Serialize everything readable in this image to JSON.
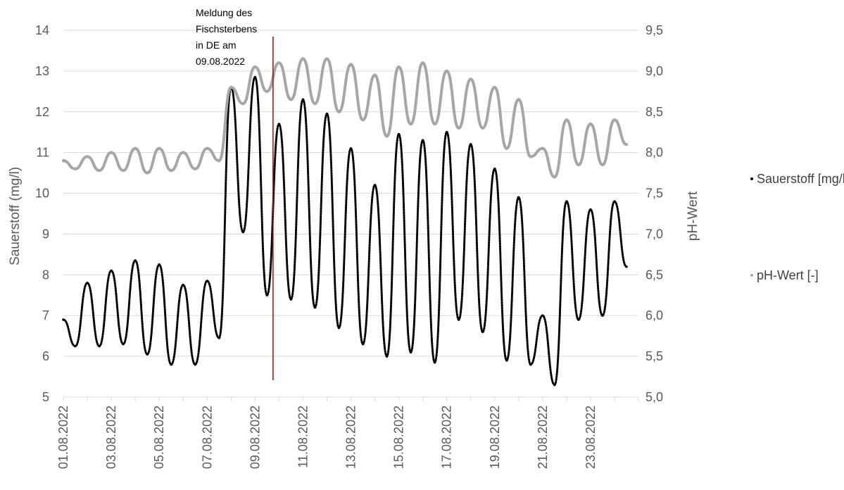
{
  "chart_data": {
    "type": "scatter",
    "title": "",
    "xlabel": "",
    "ylabel": "Sauerstoff (mg/l)",
    "y2label": "pH-Wert",
    "x_range": [
      "01.08.2022",
      "25.08.2022"
    ],
    "x_tick_labels": [
      "01.08.2022",
      "03.08.2022",
      "05.08.2022",
      "07.08.2022",
      "09.08.2022",
      "11.08.2022",
      "13.08.2022",
      "15.08.2022",
      "17.08.2022",
      "19.08.2022",
      "21.08.2022",
      "23.08.2022"
    ],
    "ylim": [
      5,
      14
    ],
    "y_ticks": [
      5,
      6,
      7,
      8,
      9,
      10,
      11,
      12,
      13,
      14
    ],
    "y2lim": [
      5.0,
      9.5
    ],
    "y2_tick_labels": [
      "5,0",
      "5,5",
      "6,0",
      "6,5",
      "7,0",
      "7,5",
      "8,0",
      "8,5",
      "9,0",
      "9,5"
    ],
    "grid": "horizontal",
    "legend_position": "right",
    "annotation": {
      "lines": [
        "Meldung des",
        "Fischsterbens",
        "in DE am",
        "09.08.2022"
      ],
      "date": "09.08.2022",
      "color": "#c00000"
    },
    "series": [
      {
        "name": "Sauerstoff [mg/l]",
        "axis": "left",
        "color": "#000000",
        "points": [
          [
            "01.08.2022",
            6.9
          ],
          [
            "01.08.2022 12:00",
            6.25
          ],
          [
            "02.08.2022",
            7.8
          ],
          [
            "02.08.2022 12:00",
            6.25
          ],
          [
            "03.08.2022",
            8.1
          ],
          [
            "03.08.2022 12:00",
            6.3
          ],
          [
            "04.08.2022",
            8.35
          ],
          [
            "04.08.2022 12:00",
            6.05
          ],
          [
            "05.08.2022",
            8.25
          ],
          [
            "05.08.2022 12:00",
            5.8
          ],
          [
            "06.08.2022",
            7.75
          ],
          [
            "06.08.2022 12:00",
            5.8
          ],
          [
            "07.08.2022",
            7.85
          ],
          [
            "07.08.2022 12:00",
            6.45
          ],
          [
            "08.08.2022",
            12.6
          ],
          [
            "08.08.2022 12:00",
            9.05
          ],
          [
            "09.08.2022",
            12.85
          ],
          [
            "09.08.2022 12:00",
            7.5
          ],
          [
            "10.08.2022",
            11.7
          ],
          [
            "10.08.2022 12:00",
            7.4
          ],
          [
            "11.08.2022",
            12.3
          ],
          [
            "11.08.2022 12:00",
            7.2
          ],
          [
            "12.08.2022",
            11.95
          ],
          [
            "12.08.2022 12:00",
            6.7
          ],
          [
            "13.08.2022",
            11.1
          ],
          [
            "13.08.2022 12:00",
            6.3
          ],
          [
            "14.08.2022",
            10.2
          ],
          [
            "14.08.2022 12:00",
            6.0
          ],
          [
            "15.08.2022",
            11.45
          ],
          [
            "15.08.2022 12:00",
            6.1
          ],
          [
            "16.08.2022",
            11.3
          ],
          [
            "16.08.2022 12:00",
            5.85
          ],
          [
            "17.08.2022",
            11.5
          ],
          [
            "17.08.2022 12:00",
            6.9
          ],
          [
            "18.08.2022",
            11.2
          ],
          [
            "18.08.2022 12:00",
            6.6
          ],
          [
            "19.08.2022",
            10.6
          ],
          [
            "19.08.2022 12:00",
            5.9
          ],
          [
            "20.08.2022",
            9.9
          ],
          [
            "20.08.2022 12:00",
            5.8
          ],
          [
            "21.08.2022",
            7.0
          ],
          [
            "21.08.2022 12:00",
            5.3
          ],
          [
            "22.08.2022",
            9.8
          ],
          [
            "22.08.2022 12:00",
            6.9
          ],
          [
            "23.08.2022",
            9.6
          ],
          [
            "23.08.2022 12:00",
            7.0
          ],
          [
            "24.08.2022",
            9.8
          ],
          [
            "24.08.2022 12:00",
            8.2
          ]
        ]
      },
      {
        "name": "pH-Wert [-]",
        "axis": "right",
        "color": "#a6a6a6",
        "points": [
          [
            "01.08.2022",
            7.9
          ],
          [
            "01.08.2022 12:00",
            7.8
          ],
          [
            "02.08.2022",
            7.95
          ],
          [
            "02.08.2022 12:00",
            7.78
          ],
          [
            "03.08.2022",
            8.0
          ],
          [
            "03.08.2022 12:00",
            7.78
          ],
          [
            "04.08.2022",
            8.05
          ],
          [
            "04.08.2022 12:00",
            7.75
          ],
          [
            "05.08.2022",
            8.05
          ],
          [
            "05.08.2022 12:00",
            7.78
          ],
          [
            "06.08.2022",
            8.0
          ],
          [
            "06.08.2022 12:00",
            7.8
          ],
          [
            "07.08.2022",
            8.05
          ],
          [
            "07.08.2022 12:00",
            7.9
          ],
          [
            "08.08.2022",
            8.8
          ],
          [
            "08.08.2022 12:00",
            8.6
          ],
          [
            "09.08.2022",
            9.05
          ],
          [
            "09.08.2022 12:00",
            8.75
          ],
          [
            "10.08.2022",
            9.1
          ],
          [
            "10.08.2022 12:00",
            8.65
          ],
          [
            "11.08.2022",
            9.15
          ],
          [
            "11.08.2022 12:00",
            8.6
          ],
          [
            "12.08.2022",
            9.15
          ],
          [
            "12.08.2022 12:00",
            8.5
          ],
          [
            "13.08.2022",
            9.08
          ],
          [
            "13.08.2022 12:00",
            8.4
          ],
          [
            "14.08.2022",
            8.95
          ],
          [
            "14.08.2022 12:00",
            8.2
          ],
          [
            "15.08.2022",
            9.05
          ],
          [
            "15.08.2022 12:00",
            8.35
          ],
          [
            "16.08.2022",
            9.1
          ],
          [
            "16.08.2022 12:00",
            8.35
          ],
          [
            "17.08.2022",
            9.0
          ],
          [
            "17.08.2022 12:00",
            8.3
          ],
          [
            "18.08.2022",
            8.9
          ],
          [
            "18.08.2022 12:00",
            8.3
          ],
          [
            "19.08.2022",
            8.8
          ],
          [
            "19.08.2022 12:00",
            8.05
          ],
          [
            "20.08.2022",
            8.65
          ],
          [
            "20.08.2022 12:00",
            7.95
          ],
          [
            "21.08.2022",
            8.05
          ],
          [
            "21.08.2022 12:00",
            7.7
          ],
          [
            "22.08.2022",
            8.4
          ],
          [
            "22.08.2022 12:00",
            7.85
          ],
          [
            "23.08.2022",
            8.35
          ],
          [
            "23.08.2022 12:00",
            7.85
          ],
          [
            "24.08.2022",
            8.4
          ],
          [
            "24.08.2022 12:00",
            8.1
          ]
        ]
      }
    ]
  }
}
